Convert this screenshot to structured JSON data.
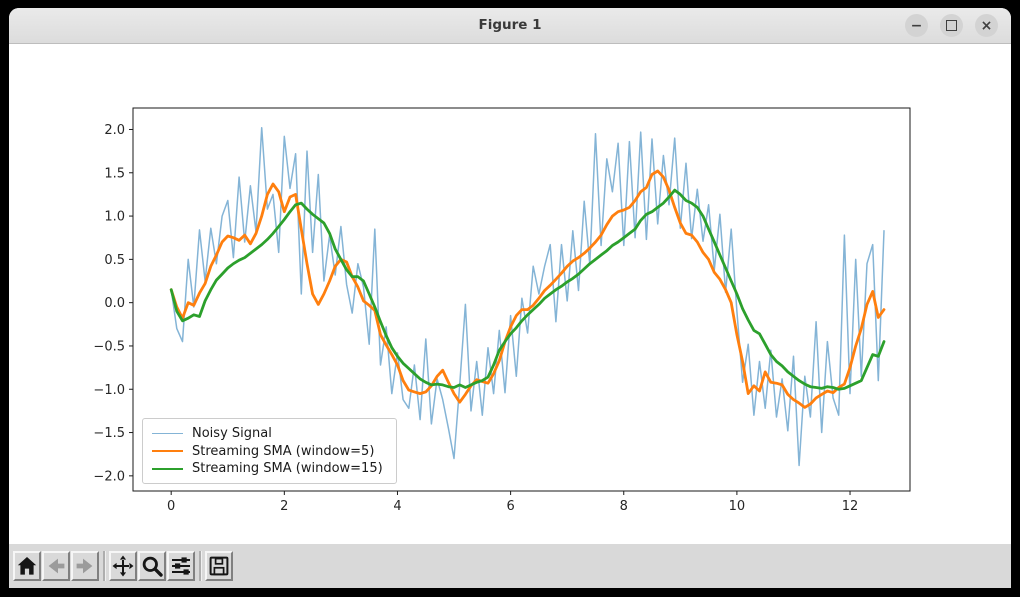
{
  "window": {
    "title": "Figure 1",
    "controls": [
      {
        "name": "minimize",
        "glyph": "−"
      },
      {
        "name": "maximize",
        "glyph": "square"
      },
      {
        "name": "close",
        "glyph": "×"
      }
    ]
  },
  "toolbar": {
    "groups": [
      [
        {
          "name": "home",
          "icon": "home-icon",
          "enabled": true
        },
        {
          "name": "back",
          "icon": "back-arrow-icon",
          "enabled": false
        },
        {
          "name": "forward",
          "icon": "forward-arrow-icon",
          "enabled": false
        }
      ],
      [
        {
          "name": "pan",
          "icon": "pan-arrows-icon",
          "enabled": true
        },
        {
          "name": "zoom",
          "icon": "magnifier-icon",
          "enabled": true
        },
        {
          "name": "configure-subplots",
          "icon": "sliders-icon",
          "enabled": true
        }
      ],
      [
        {
          "name": "save",
          "icon": "floppy-disk-icon",
          "enabled": true
        }
      ]
    ]
  },
  "colors": {
    "titlebar": "#e4e4e4",
    "toolbar": "#d9d9d9",
    "frame": "#000000",
    "axes_background": "#ffffff",
    "spine": "#1a1a1a",
    "tick_label": "#262626"
  },
  "chart_data": {
    "type": "line",
    "title": "",
    "xlabel": "",
    "ylabel": "",
    "grid": false,
    "legend_position": "lower left",
    "xticks": [
      0,
      2,
      4,
      6,
      8,
      10,
      12
    ],
    "yticks": [
      2.0,
      1.5,
      1.0,
      0.5,
      0.0,
      -0.5,
      -1.0,
      -1.5,
      -2.0
    ],
    "xlim": [
      -0.675,
      13.06
    ],
    "ylim": [
      -2.175,
      2.248
    ],
    "x": [
      0.0,
      0.1,
      0.2,
      0.3,
      0.4,
      0.5,
      0.6,
      0.7,
      0.8,
      0.9,
      1.0,
      1.1,
      1.2,
      1.3,
      1.4,
      1.5,
      1.6,
      1.7,
      1.8,
      1.9,
      2.0,
      2.1,
      2.2,
      2.3,
      2.4,
      2.5,
      2.6,
      2.7,
      2.8,
      2.9,
      3.0,
      3.1,
      3.2,
      3.3,
      3.4,
      3.5,
      3.6,
      3.7,
      3.8,
      3.9,
      4.0,
      4.1,
      4.2,
      4.3,
      4.4,
      4.5,
      4.6,
      4.7,
      4.8,
      4.9,
      5.0,
      5.1,
      5.2,
      5.3,
      5.4,
      5.5,
      5.6,
      5.7,
      5.8,
      5.9,
      6.0,
      6.1,
      6.2,
      6.3,
      6.4,
      6.5,
      6.6,
      6.7,
      6.8,
      6.9,
      7.0,
      7.1,
      7.2,
      7.3,
      7.4,
      7.5,
      7.6,
      7.7,
      7.8,
      7.9,
      8.0,
      8.1,
      8.2,
      8.3,
      8.4,
      8.5,
      8.6,
      8.7,
      8.8,
      8.9,
      9.0,
      9.1,
      9.2,
      9.3,
      9.4,
      9.5,
      9.6,
      9.7,
      9.8,
      9.9,
      10.0,
      10.1,
      10.2,
      10.3,
      10.4,
      10.5,
      10.6,
      10.7,
      10.8,
      10.9,
      11.0,
      11.1,
      11.2,
      11.3,
      11.4,
      11.5,
      11.6,
      11.7,
      11.8,
      11.9,
      12.0,
      12.1,
      12.2,
      12.3,
      12.4,
      12.5,
      12.6
    ],
    "series": [
      {
        "name": "Noisy Signal",
        "color": "#1f77b4",
        "alpha": 0.55,
        "linewidth": 1.5,
        "values": [
          0.15,
          -0.3,
          -0.45,
          0.5,
          -0.05,
          0.84,
          0.25,
          0.86,
          0.45,
          1.0,
          1.18,
          0.52,
          1.45,
          0.7,
          1.35,
          0.82,
          2.02,
          1.08,
          1.25,
          0.58,
          1.92,
          1.32,
          1.72,
          0.1,
          1.75,
          0.58,
          1.48,
          0.25,
          0.78,
          0.32,
          0.88,
          0.21,
          -0.12,
          0.45,
          0.18,
          -0.48,
          0.85,
          -0.72,
          -0.28,
          -1.05,
          -0.58,
          -1.12,
          -1.22,
          -0.72,
          -1.35,
          -0.42,
          -1.4,
          -0.88,
          -1.12,
          -1.45,
          -1.8,
          -0.95,
          -0.02,
          -1.25,
          -0.68,
          -1.3,
          -0.52,
          -1.05,
          -0.32,
          -1.04,
          -0.15,
          -0.85,
          0.05,
          -0.35,
          0.42,
          0.1,
          0.42,
          0.67,
          -0.22,
          0.67,
          0.02,
          0.83,
          0.14,
          1.17,
          0.44,
          1.95,
          0.66,
          1.66,
          1.28,
          1.84,
          0.66,
          1.86,
          0.75,
          1.97,
          0.73,
          1.89,
          0.91,
          1.7,
          1.13,
          1.9,
          0.86,
          1.61,
          0.74,
          1.31,
          0.71,
          1.13,
          0.38,
          1.02,
          0.12,
          0.85,
          -0.1,
          -0.92,
          -0.48,
          -1.3,
          -0.68,
          -1.22,
          -0.55,
          -1.32,
          -0.88,
          -1.48,
          -0.62,
          -1.88,
          -0.85,
          -1.32,
          -0.22,
          -1.5,
          -0.45,
          -1.1,
          -1.3,
          0.78,
          -1.05,
          0.5,
          -0.85,
          0.45,
          0.67,
          -0.9,
          0.83
        ]
      },
      {
        "name": "Streaming SMA (window=5)",
        "color": "#ff7f0e",
        "alpha": 1.0,
        "linewidth": 2.8,
        "values": [
          0.15,
          -0.05,
          -0.18,
          0.0,
          -0.03,
          0.11,
          0.22,
          0.42,
          0.55,
          0.7,
          0.77,
          0.75,
          0.72,
          0.78,
          0.68,
          0.8,
          1.0,
          1.25,
          1.37,
          1.28,
          1.05,
          1.22,
          1.25,
          0.85,
          0.45,
          0.1,
          -0.02,
          0.1,
          0.25,
          0.42,
          0.5,
          0.47,
          0.3,
          0.18,
          0.02,
          -0.03,
          -0.09,
          -0.37,
          -0.49,
          -0.6,
          -0.72,
          -0.9,
          -1.01,
          -1.03,
          -1.05,
          -1.03,
          -0.96,
          -0.85,
          -0.78,
          -0.92,
          -1.05,
          -1.15,
          -1.06,
          -0.96,
          -0.89,
          -0.91,
          -0.93,
          -0.82,
          -0.67,
          -0.45,
          -0.28,
          -0.15,
          -0.08,
          -0.08,
          -0.03,
          0.05,
          0.14,
          0.2,
          0.27,
          0.34,
          0.42,
          0.48,
          0.52,
          0.57,
          0.63,
          0.7,
          0.78,
          0.9,
          1.0,
          1.05,
          1.07,
          1.1,
          1.18,
          1.28,
          1.33,
          1.48,
          1.52,
          1.45,
          1.3,
          1.1,
          0.92,
          0.8,
          0.78,
          0.7,
          0.58,
          0.5,
          0.35,
          0.27,
          0.15,
          0.0,
          -0.37,
          -0.68,
          -1.05,
          -0.96,
          -1.02,
          -0.8,
          -0.92,
          -0.93,
          -0.95,
          -1.06,
          -1.12,
          -1.16,
          -1.21,
          -1.17,
          -1.1,
          -1.06,
          -1.02,
          -1.04,
          -0.98,
          -0.94,
          -0.75,
          -0.5,
          -0.3,
          -0.02,
          0.13,
          -0.17,
          -0.08
        ]
      },
      {
        "name": "Streaming SMA (window=15)",
        "color": "#2ca02c",
        "alpha": 1.0,
        "linewidth": 2.8,
        "values": [
          0.15,
          -0.1,
          -0.21,
          -0.18,
          -0.14,
          -0.16,
          0.02,
          0.15,
          0.26,
          0.33,
          0.4,
          0.45,
          0.49,
          0.52,
          0.57,
          0.62,
          0.67,
          0.73,
          0.8,
          0.88,
          0.96,
          1.05,
          1.13,
          1.15,
          1.08,
          1.02,
          0.97,
          0.92,
          0.8,
          0.62,
          0.5,
          0.38,
          0.3,
          0.3,
          0.25,
          0.1,
          -0.05,
          -0.22,
          -0.38,
          -0.52,
          -0.62,
          -0.7,
          -0.76,
          -0.82,
          -0.88,
          -0.92,
          -0.95,
          -0.94,
          -0.95,
          -0.97,
          -0.98,
          -0.95,
          -0.98,
          -0.95,
          -0.92,
          -0.9,
          -0.86,
          -0.72,
          -0.55,
          -0.45,
          -0.36,
          -0.29,
          -0.21,
          -0.14,
          -0.08,
          -0.02,
          0.05,
          0.1,
          0.15,
          0.19,
          0.24,
          0.28,
          0.33,
          0.39,
          0.45,
          0.5,
          0.55,
          0.6,
          0.66,
          0.7,
          0.75,
          0.8,
          0.85,
          0.95,
          1.02,
          1.05,
          1.1,
          1.15,
          1.22,
          1.3,
          1.25,
          1.18,
          1.15,
          1.1,
          1.0,
          0.85,
          0.7,
          0.55,
          0.4,
          0.25,
          0.1,
          -0.07,
          -0.2,
          -0.32,
          -0.36,
          -0.48,
          -0.6,
          -0.68,
          -0.73,
          -0.8,
          -0.85,
          -0.9,
          -0.94,
          -0.97,
          -0.98,
          -0.99,
          -0.97,
          -0.98,
          -1.0,
          -0.99,
          -0.96,
          -0.93,
          -0.9,
          -0.75,
          -0.6,
          -0.62,
          -0.45
        ]
      }
    ]
  }
}
